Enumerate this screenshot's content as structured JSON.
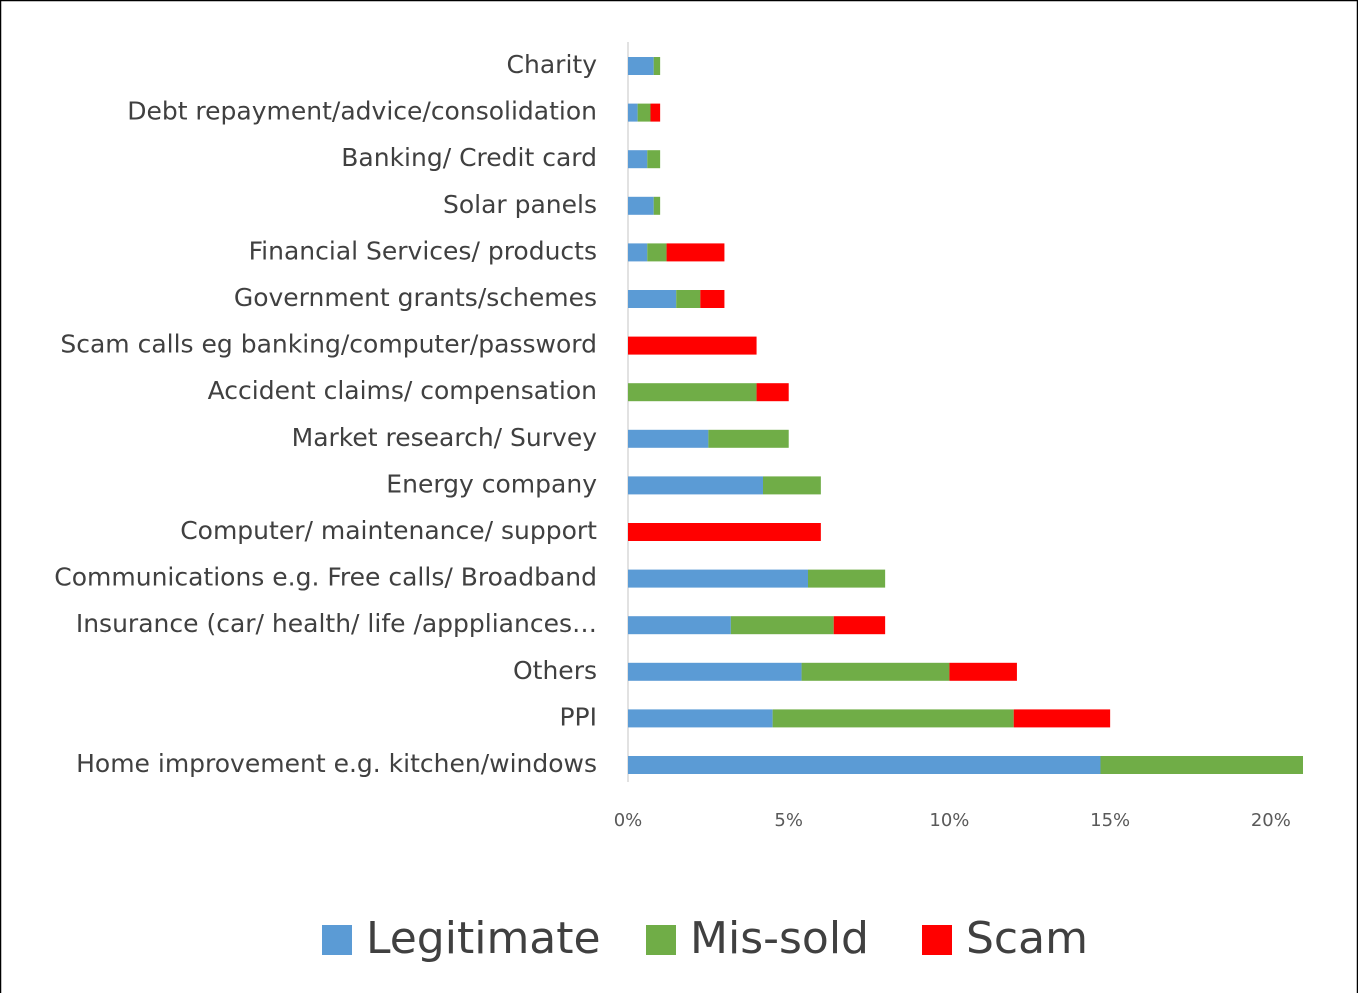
{
  "chart_data": {
    "type": "stacked_barh",
    "categories": [
      "Charity",
      "Debt repayment/advice/consolidation",
      "Banking/ Credit card",
      "Solar panels",
      "Financial Services/ products",
      "Government grants/schemes",
      "Scam calls eg banking/computer/password",
      "Accident claims/ compensation",
      "Market research/ Survey",
      "Energy company",
      "Computer/ maintenance/ support",
      "Communications e.g. Free calls/ Broadband",
      "Insurance (car/ health/ life /apppliances…",
      "Others",
      "PPI",
      "Home  improvement e.g. kitchen/windows"
    ],
    "series": [
      {
        "name": "Legitimate",
        "color": "#5b9bd5",
        "values": [
          0.8,
          0.3,
          0.6,
          0.8,
          0.6,
          1.5,
          0,
          0,
          2.5,
          4.2,
          0,
          5.6,
          3.2,
          5.4,
          4.5,
          14.7
        ]
      },
      {
        "name": "Mis-sold",
        "color": "#70ad47",
        "values": [
          0.2,
          0.4,
          0.4,
          0.2,
          0.6,
          0.75,
          0,
          4.0,
          2.5,
          1.8,
          0,
          2.4,
          3.2,
          4.6,
          7.5,
          6.3
        ]
      },
      {
        "name": "Scam",
        "color": "#ff0000",
        "values": [
          0,
          0.3,
          0,
          0,
          1.8,
          0.75,
          4.0,
          1.0,
          0,
          0,
          6.0,
          0,
          1.6,
          2.1,
          3.0,
          0
        ]
      }
    ],
    "xlim": [
      0,
      21
    ],
    "xticks": [
      {
        "value": 0,
        "label": "0%"
      },
      {
        "value": 5,
        "label": "5%"
      },
      {
        "value": 10,
        "label": "10%"
      },
      {
        "value": 15,
        "label": "15%"
      },
      {
        "value": 20,
        "label": "20%"
      }
    ],
    "legend": "bottom"
  }
}
